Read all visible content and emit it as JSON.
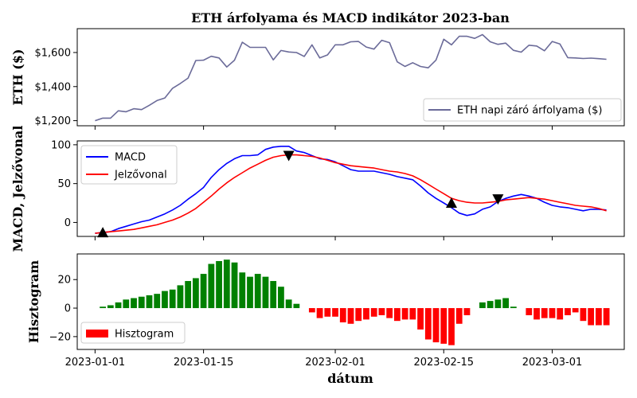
{
  "chart_data": {
    "type": "line",
    "title": "ETH árfolyama és MACD indikátor 2023-ban",
    "xlabel": "dátum",
    "x_start": "2023-01-01",
    "x_end": "2023-03-08",
    "x_ticks": [
      "2023-01-01",
      "2023-01-15",
      "2023-02-01",
      "2023-02-15",
      "2023-03-01"
    ],
    "panels": [
      {
        "ylabel": "ETH ($)",
        "ylim": [
          1170,
          1740
        ],
        "yticks": [
          1200,
          1400,
          1600
        ],
        "ytick_labels": [
          "$1,200",
          "$1,400",
          "$1,600"
        ],
        "legend": "lower right",
        "series": [
          {
            "name": "ETH napi záró árfolyama ($)",
            "color": "#6b6b99",
            "values": [
              1200,
              1215,
              1215,
              1258,
              1252,
              1270,
              1265,
              1290,
              1318,
              1333,
              1390,
              1418,
              1450,
              1553,
              1555,
              1578,
              1568,
              1515,
              1555,
              1660,
              1630,
              1630,
              1630,
              1557,
              1612,
              1603,
              1600,
              1577,
              1645,
              1568,
              1586,
              1645,
              1645,
              1663,
              1665,
              1632,
              1620,
              1672,
              1658,
              1545,
              1518,
              1540,
              1518,
              1510,
              1555,
              1678,
              1645,
              1695,
              1695,
              1683,
              1705,
              1663,
              1648,
              1655,
              1613,
              1602,
              1643,
              1638,
              1610,
              1665,
              1650,
              1570,
              1568,
              1565,
              1567,
              1564,
              1560
            ]
          }
        ]
      },
      {
        "ylabel": "MACD, Jelzővonal",
        "ylim": [
          -18,
          105
        ],
        "yticks": [
          0,
          50,
          100
        ],
        "ytick_labels": [
          "0",
          "50",
          "100"
        ],
        "legend": "upper left",
        "series": [
          {
            "name": "MACD",
            "color": "#0000ff",
            "values": [
              -14,
              -13,
              -12,
              -8,
              -5,
              -2,
              1,
              3,
              7,
              11,
              16,
              22,
              30,
              37,
              45,
              58,
              68,
              76,
              82,
              86,
              86,
              87,
              94,
              97,
              98,
              98,
              92,
              90,
              86,
              82,
              81,
              78,
              73,
              68,
              66,
              66,
              66,
              64,
              62,
              59,
              57,
              55,
              47,
              38,
              31,
              25,
              19,
              12,
              9,
              11,
              17,
              20,
              27,
              31,
              34,
              36,
              34,
              31,
              26,
              22,
              20,
              19,
              17,
              15,
              17,
              17,
              16
            ]
          },
          {
            "name": "Jelzővonal",
            "color": "#ff0000",
            "values": [
              -14,
              -13,
              -12,
              -11,
              -10,
              -9,
              -7,
              -5,
              -3,
              0,
              3,
              7,
              12,
              18,
              26,
              34,
              43,
              51,
              58,
              64,
              70,
              75,
              80,
              84,
              86,
              87,
              87,
              86,
              85,
              83,
              80,
              77,
              75,
              73,
              72,
              71,
              70,
              68,
              66,
              65,
              63,
              60,
              55,
              49,
              43,
              37,
              31,
              28,
              26,
              25,
              25,
              26,
              27,
              29,
              30,
              31,
              32,
              31,
              30,
              28,
              26,
              24,
              22,
              21,
              20,
              18,
              15
            ]
          }
        ],
        "markers": [
          {
            "type": "buy",
            "index": 1,
            "value": -13
          },
          {
            "type": "sell",
            "index": 25,
            "value": 86
          },
          {
            "type": "buy",
            "index": 46,
            "value": 25
          },
          {
            "type": "sell",
            "index": 52,
            "value": 30
          }
        ]
      },
      {
        "ylabel": "Hisztogram",
        "ylim": [
          -29,
          38
        ],
        "yticks": [
          -20,
          0,
          20
        ],
        "ytick_labels": [
          "−20",
          "0",
          "20"
        ],
        "legend": "lower left",
        "series": [
          {
            "name": "Hisztogram",
            "type": "bar",
            "positive_color": "#008000",
            "negative_color": "#ff0000",
            "values": [
              0,
              1,
              2,
              4,
              6,
              7,
              8,
              9,
              10,
              12,
              13,
              16,
              19,
              21,
              24,
              31,
              33,
              34,
              32,
              25,
              22,
              24,
              22,
              19,
              15,
              6,
              3,
              0,
              -3,
              -7,
              -6,
              -6,
              -10,
              -11,
              -9,
              -8,
              -6,
              -5,
              -7,
              -9,
              -8,
              -8,
              -15,
              -22,
              -24,
              -25,
              -26,
              -11,
              -5,
              0,
              4,
              5,
              6,
              7,
              1,
              0,
              -5,
              -8,
              -7,
              -7,
              -8,
              -5,
              -3,
              -9,
              -12,
              -12,
              -12
            ]
          }
        ]
      }
    ]
  }
}
